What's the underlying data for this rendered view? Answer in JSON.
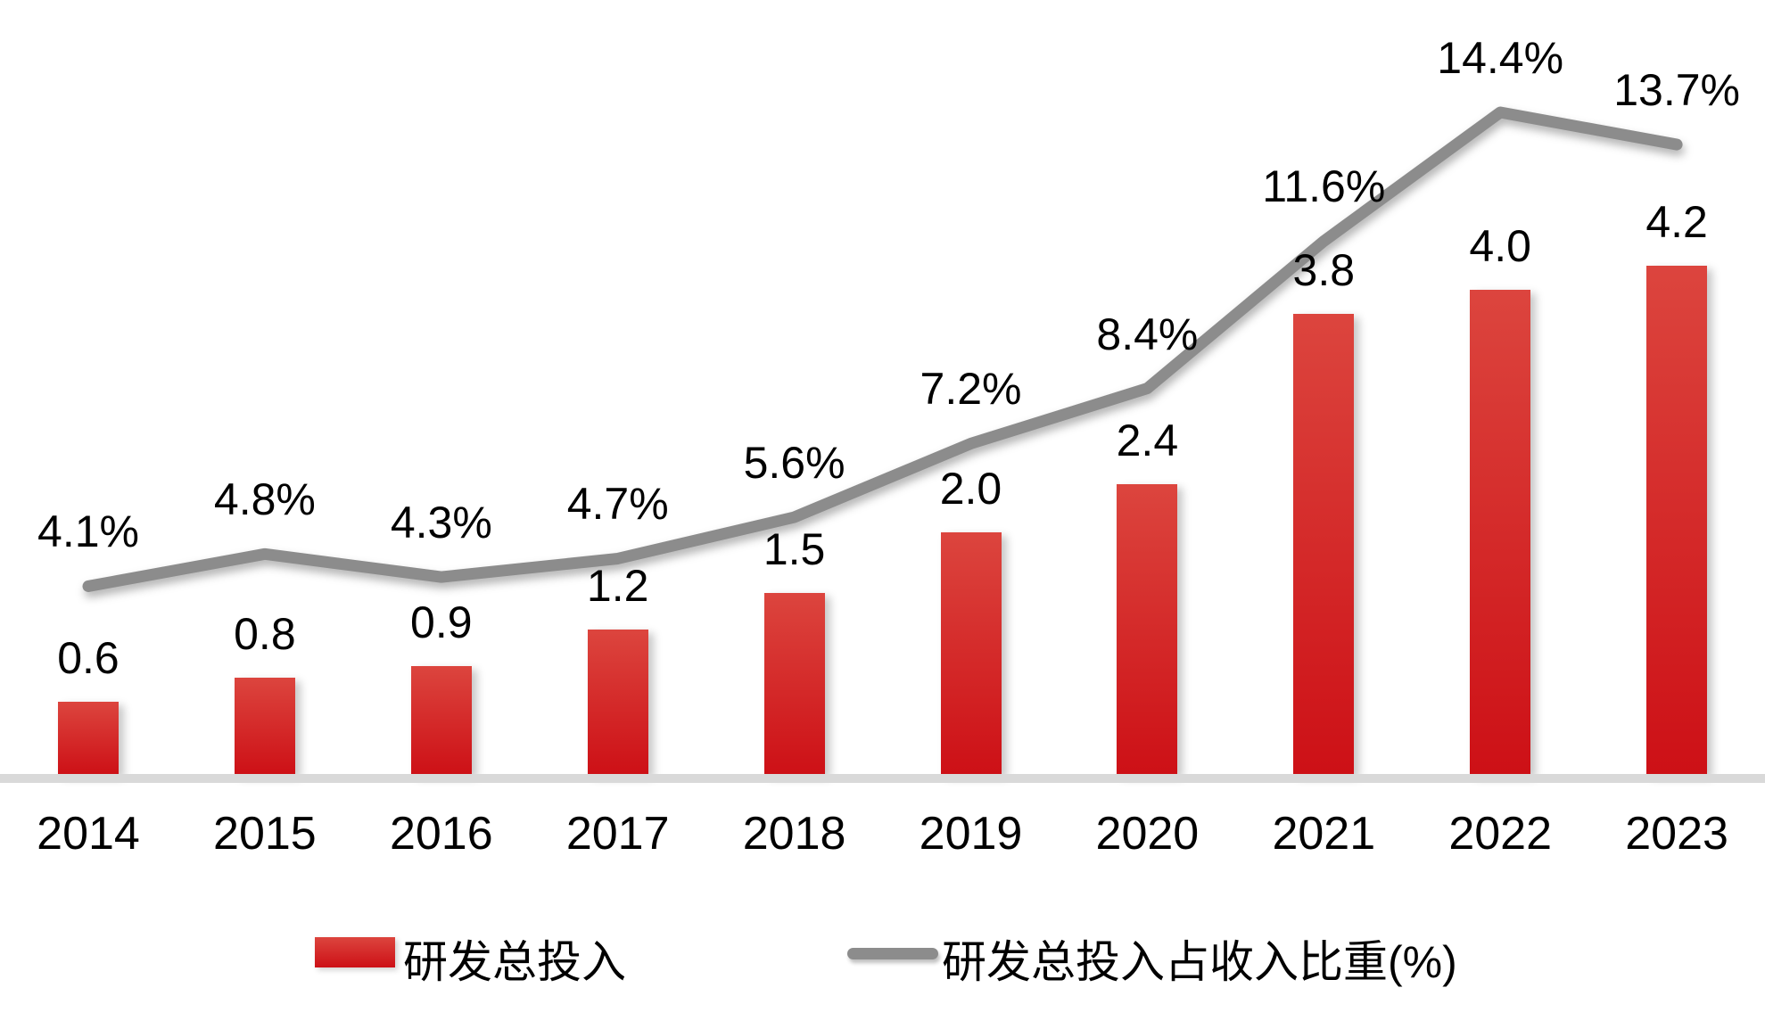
{
  "chart_data": {
    "type": "bar",
    "subtype": "combo-bar-line-dual-axis",
    "title": "",
    "xlabel": "",
    "ylabel": "",
    "gridlines": false,
    "value_axes_visible": false,
    "legend_position": "bottom",
    "categories": [
      "2014",
      "2015",
      "2016",
      "2017",
      "2018",
      "2019",
      "2020",
      "2021",
      "2022",
      "2023"
    ],
    "series": [
      {
        "name": "研发总投入",
        "type": "bar",
        "values": [
          0.6,
          0.8,
          0.9,
          1.2,
          1.5,
          2.0,
          2.4,
          3.8,
          4.0,
          4.2
        ],
        "data_labels": [
          "0.6",
          "0.8",
          "0.9",
          "1.2",
          "1.5",
          "2.0",
          "2.4",
          "3.8",
          "4.0",
          "4.2"
        ],
        "axis_implied_range": [
          0,
          4.6
        ]
      },
      {
        "name": "研发总投入占收入比重(%)",
        "type": "line",
        "values": [
          4.1,
          4.8,
          4.3,
          4.7,
          5.6,
          7.2,
          8.4,
          11.6,
          14.4,
          13.7
        ],
        "data_labels": [
          "4.1%",
          "4.8%",
          "4.3%",
          "4.7%",
          "5.6%",
          "7.2%",
          "8.4%",
          "11.6%",
          "14.4%",
          "13.7%"
        ],
        "axis_implied_range": [
          0,
          16.8
        ]
      }
    ]
  },
  "colors": {
    "bar_top": "#dc453e",
    "bar_bottom": "#cd1016",
    "line": "#8c8c8c",
    "axis_band": "#d9d9d9",
    "text": "#000000",
    "background": "#ffffff"
  }
}
